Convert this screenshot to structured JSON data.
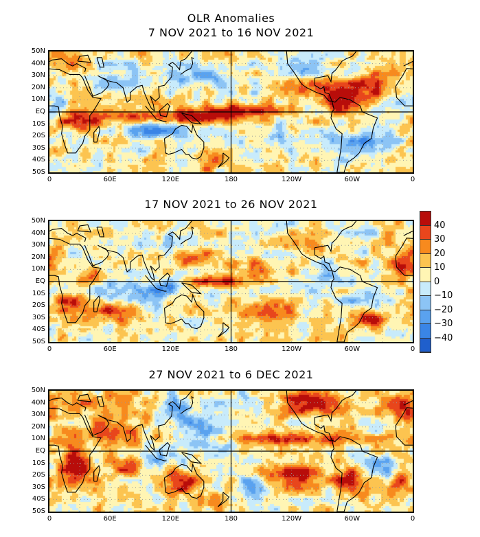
{
  "title": "OLR Anomalies",
  "panels": [
    {
      "subtitle": "7 NOV 2021 to 16 NOV 2021"
    },
    {
      "subtitle": "17 NOV 2021 to 26 NOV 2021"
    },
    {
      "subtitle": "27 NOV 2021 to 6 DEC 2021"
    }
  ],
  "axes": {
    "lat_labels": [
      "50N",
      "40N",
      "30N",
      "20N",
      "10N",
      "EQ",
      "10S",
      "20S",
      "30S",
      "40S",
      "50S"
    ],
    "lon_labels": [
      "0",
      "60E",
      "120E",
      "180",
      "120W",
      "60W",
      "0"
    ],
    "lat_range": [
      -50,
      50
    ],
    "lon_range": [
      0,
      360
    ]
  },
  "colorbar": {
    "labels": [
      "40",
      "30",
      "20",
      "10",
      "0",
      "−10",
      "−20",
      "−30",
      "−40"
    ],
    "levels": [
      -40,
      -30,
      -20,
      -10,
      0,
      10,
      20,
      30,
      40
    ],
    "colors": [
      "#1f5fcc",
      "#3a85e6",
      "#5aa2ef",
      "#8cc4f5",
      "#c8ebfb",
      "#fff5b4",
      "#fcc450",
      "#f78a1e",
      "#e8461c",
      "#b80d0a"
    ]
  }
}
